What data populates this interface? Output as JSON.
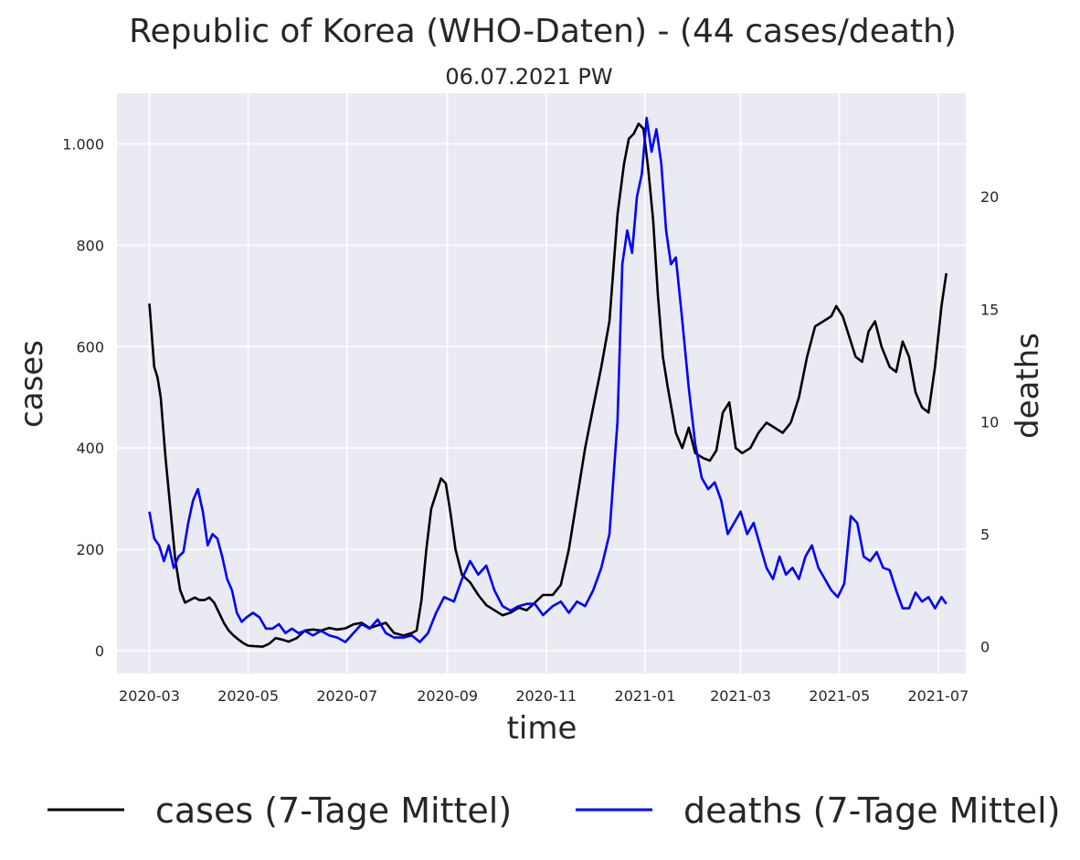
{
  "chart_data": {
    "type": "line",
    "title": "Republic of Korea (WHO-Daten) - (44 cases/death)",
    "subtitle": "06.07.2021 PW",
    "xlabel": "time",
    "ylabel_left": "cases",
    "ylabel_right": "deaths",
    "x_ticks": [
      "2020-03",
      "2020-05",
      "2020-07",
      "2020-09",
      "2020-11",
      "2021-01",
      "2021-03",
      "2021-05",
      "2021-07"
    ],
    "y_left_ticks": [
      {
        "value": 0,
        "label": "0"
      },
      {
        "value": 200,
        "label": "200"
      },
      {
        "value": 400,
        "label": "400"
      },
      {
        "value": 600,
        "label": "600"
      },
      {
        "value": 800,
        "label": "800"
      },
      {
        "value": 1000,
        "label": "1.000"
      }
    ],
    "y_right_ticks": [
      {
        "value": 0,
        "label": "0"
      },
      {
        "value": 5,
        "label": "5"
      },
      {
        "value": 10,
        "label": "10"
      },
      {
        "value": 15,
        "label": "15"
      },
      {
        "value": 20,
        "label": "20"
      }
    ],
    "x_range": [
      "2020-02-10",
      "2021-07-18"
    ],
    "y_left_range": [
      -45,
      1100
    ],
    "y_right_range": [
      -1.2,
      24.6
    ],
    "grid": true,
    "background_color": "#eaeaf2",
    "legend_position": "bottom",
    "series": [
      {
        "name": "cases (7-Tage Mittel)",
        "axis": "left",
        "color": "#000000",
        "points": [
          [
            "2020-03-01",
            685
          ],
          [
            "2020-03-04",
            560
          ],
          [
            "2020-03-06",
            540
          ],
          [
            "2020-03-08",
            500
          ],
          [
            "2020-03-11",
            380
          ],
          [
            "2020-03-14",
            280
          ],
          [
            "2020-03-17",
            180
          ],
          [
            "2020-03-20",
            120
          ],
          [
            "2020-03-23",
            95
          ],
          [
            "2020-03-26",
            100
          ],
          [
            "2020-03-29",
            105
          ],
          [
            "2020-04-01",
            100
          ],
          [
            "2020-04-04",
            100
          ],
          [
            "2020-04-07",
            105
          ],
          [
            "2020-04-10",
            95
          ],
          [
            "2020-04-13",
            75
          ],
          [
            "2020-04-16",
            55
          ],
          [
            "2020-04-19",
            40
          ],
          [
            "2020-04-22",
            30
          ],
          [
            "2020-04-25",
            22
          ],
          [
            "2020-04-28",
            15
          ],
          [
            "2020-05-01",
            10
          ],
          [
            "2020-05-05",
            9
          ],
          [
            "2020-05-10",
            8
          ],
          [
            "2020-05-14",
            14
          ],
          [
            "2020-05-18",
            25
          ],
          [
            "2020-05-22",
            22
          ],
          [
            "2020-05-26",
            18
          ],
          [
            "2020-05-31",
            25
          ],
          [
            "2020-06-05",
            40
          ],
          [
            "2020-06-10",
            42
          ],
          [
            "2020-06-15",
            40
          ],
          [
            "2020-06-20",
            45
          ],
          [
            "2020-06-25",
            42
          ],
          [
            "2020-06-30",
            44
          ],
          [
            "2020-07-05",
            52
          ],
          [
            "2020-07-10",
            55
          ],
          [
            "2020-07-15",
            45
          ],
          [
            "2020-07-20",
            50
          ],
          [
            "2020-07-25",
            55
          ],
          [
            "2020-07-30",
            35
          ],
          [
            "2020-08-05",
            30
          ],
          [
            "2020-08-10",
            35
          ],
          [
            "2020-08-13",
            40
          ],
          [
            "2020-08-16",
            100
          ],
          [
            "2020-08-19",
            200
          ],
          [
            "2020-08-22",
            280
          ],
          [
            "2020-08-25",
            310
          ],
          [
            "2020-08-28",
            340
          ],
          [
            "2020-08-31",
            330
          ],
          [
            "2020-09-03",
            270
          ],
          [
            "2020-09-06",
            200
          ],
          [
            "2020-09-10",
            150
          ],
          [
            "2020-09-15",
            135
          ],
          [
            "2020-09-20",
            110
          ],
          [
            "2020-09-25",
            90
          ],
          [
            "2020-09-30",
            80
          ],
          [
            "2020-10-05",
            70
          ],
          [
            "2020-10-10",
            75
          ],
          [
            "2020-10-15",
            85
          ],
          [
            "2020-10-20",
            80
          ],
          [
            "2020-10-25",
            95
          ],
          [
            "2020-10-30",
            110
          ],
          [
            "2020-11-05",
            110
          ],
          [
            "2020-11-10",
            130
          ],
          [
            "2020-11-15",
            200
          ],
          [
            "2020-11-20",
            300
          ],
          [
            "2020-11-25",
            400
          ],
          [
            "2020-11-30",
            480
          ],
          [
            "2020-12-05",
            560
          ],
          [
            "2020-12-10",
            650
          ],
          [
            "2020-12-15",
            860
          ],
          [
            "2020-12-19",
            960
          ],
          [
            "2020-12-22",
            1010
          ],
          [
            "2020-12-25",
            1020
          ],
          [
            "2020-12-28",
            1040
          ],
          [
            "2020-12-31",
            1030
          ],
          [
            "2021-01-03",
            950
          ],
          [
            "2021-01-06",
            850
          ],
          [
            "2021-01-09",
            700
          ],
          [
            "2021-01-12",
            580
          ],
          [
            "2021-01-15",
            520
          ],
          [
            "2021-01-20",
            430
          ],
          [
            "2021-01-24",
            400
          ],
          [
            "2021-01-28",
            440
          ],
          [
            "2021-02-01",
            390
          ],
          [
            "2021-02-06",
            380
          ],
          [
            "2021-02-10",
            375
          ],
          [
            "2021-02-14",
            395
          ],
          [
            "2021-02-18",
            470
          ],
          [
            "2021-02-22",
            490
          ],
          [
            "2021-02-26",
            400
          ],
          [
            "2021-03-02",
            390
          ],
          [
            "2021-03-07",
            400
          ],
          [
            "2021-03-12",
            430
          ],
          [
            "2021-03-17",
            450
          ],
          [
            "2021-03-22",
            440
          ],
          [
            "2021-03-27",
            430
          ],
          [
            "2021-04-01",
            450
          ],
          [
            "2021-04-06",
            500
          ],
          [
            "2021-04-11",
            580
          ],
          [
            "2021-04-16",
            640
          ],
          [
            "2021-04-21",
            650
          ],
          [
            "2021-04-26",
            660
          ],
          [
            "2021-04-29",
            680
          ],
          [
            "2021-05-03",
            660
          ],
          [
            "2021-05-07",
            620
          ],
          [
            "2021-05-11",
            580
          ],
          [
            "2021-05-15",
            570
          ],
          [
            "2021-05-19",
            630
          ],
          [
            "2021-05-23",
            650
          ],
          [
            "2021-05-27",
            600
          ],
          [
            "2021-06-01",
            560
          ],
          [
            "2021-06-05",
            550
          ],
          [
            "2021-06-09",
            610
          ],
          [
            "2021-06-13",
            580
          ],
          [
            "2021-06-17",
            510
          ],
          [
            "2021-06-21",
            480
          ],
          [
            "2021-06-25",
            470
          ],
          [
            "2021-06-29",
            560
          ],
          [
            "2021-07-03",
            680
          ],
          [
            "2021-07-06",
            745
          ]
        ]
      },
      {
        "name": "deaths (7-Tage Mittel)",
        "axis": "right",
        "color": "#0000ff",
        "points": [
          [
            "2020-03-01",
            6.0
          ],
          [
            "2020-03-04",
            4.8
          ],
          [
            "2020-03-07",
            4.5
          ],
          [
            "2020-03-10",
            3.8
          ],
          [
            "2020-03-13",
            4.5
          ],
          [
            "2020-03-16",
            3.5
          ],
          [
            "2020-03-19",
            4.0
          ],
          [
            "2020-03-22",
            4.2
          ],
          [
            "2020-03-25",
            5.5
          ],
          [
            "2020-03-28",
            6.5
          ],
          [
            "2020-03-31",
            7.0
          ],
          [
            "2020-04-03",
            6.0
          ],
          [
            "2020-04-06",
            4.5
          ],
          [
            "2020-04-09",
            5.0
          ],
          [
            "2020-04-12",
            4.8
          ],
          [
            "2020-04-15",
            4.0
          ],
          [
            "2020-04-18",
            3.0
          ],
          [
            "2020-04-21",
            2.5
          ],
          [
            "2020-04-24",
            1.5
          ],
          [
            "2020-04-27",
            1.1
          ],
          [
            "2020-04-30",
            1.3
          ],
          [
            "2020-05-04",
            1.5
          ],
          [
            "2020-05-08",
            1.3
          ],
          [
            "2020-05-12",
            0.8
          ],
          [
            "2020-05-16",
            0.8
          ],
          [
            "2020-05-20",
            1.0
          ],
          [
            "2020-05-24",
            0.6
          ],
          [
            "2020-05-28",
            0.8
          ],
          [
            "2020-06-01",
            0.6
          ],
          [
            "2020-06-05",
            0.7
          ],
          [
            "2020-06-10",
            0.5
          ],
          [
            "2020-06-15",
            0.7
          ],
          [
            "2020-06-20",
            0.5
          ],
          [
            "2020-06-25",
            0.4
          ],
          [
            "2020-06-30",
            0.2
          ],
          [
            "2020-07-05",
            0.6
          ],
          [
            "2020-07-10",
            1.0
          ],
          [
            "2020-07-15",
            0.8
          ],
          [
            "2020-07-20",
            1.2
          ],
          [
            "2020-07-25",
            0.6
          ],
          [
            "2020-07-30",
            0.4
          ],
          [
            "2020-08-05",
            0.4
          ],
          [
            "2020-08-10",
            0.5
          ],
          [
            "2020-08-15",
            0.2
          ],
          [
            "2020-08-20",
            0.6
          ],
          [
            "2020-08-25",
            1.5
          ],
          [
            "2020-08-30",
            2.2
          ],
          [
            "2020-09-05",
            2.0
          ],
          [
            "2020-09-10",
            3.0
          ],
          [
            "2020-09-15",
            3.8
          ],
          [
            "2020-09-20",
            3.2
          ],
          [
            "2020-09-25",
            3.6
          ],
          [
            "2020-09-30",
            2.5
          ],
          [
            "2020-10-05",
            1.8
          ],
          [
            "2020-10-10",
            1.6
          ],
          [
            "2020-10-15",
            1.8
          ],
          [
            "2020-10-20",
            1.9
          ],
          [
            "2020-10-25",
            1.9
          ],
          [
            "2020-10-30",
            1.4
          ],
          [
            "2020-11-05",
            1.8
          ],
          [
            "2020-11-10",
            2.0
          ],
          [
            "2020-11-15",
            1.5
          ],
          [
            "2020-11-20",
            2.0
          ],
          [
            "2020-11-25",
            1.8
          ],
          [
            "2020-11-30",
            2.5
          ],
          [
            "2020-12-05",
            3.5
          ],
          [
            "2020-12-10",
            5.0
          ],
          [
            "2020-12-15",
            10.0
          ],
          [
            "2020-12-18",
            17.0
          ],
          [
            "2020-12-21",
            18.5
          ],
          [
            "2020-12-24",
            17.5
          ],
          [
            "2020-12-27",
            20.0
          ],
          [
            "2020-12-30",
            21.0
          ],
          [
            "2021-01-02",
            23.5
          ],
          [
            "2021-01-05",
            22.0
          ],
          [
            "2021-01-08",
            23.0
          ],
          [
            "2021-01-11",
            21.5
          ],
          [
            "2021-01-14",
            18.5
          ],
          [
            "2021-01-17",
            17.0
          ],
          [
            "2021-01-20",
            17.3
          ],
          [
            "2021-01-24",
            14.5
          ],
          [
            "2021-01-28",
            11.5
          ],
          [
            "2021-02-01",
            9.0
          ],
          [
            "2021-02-05",
            7.5
          ],
          [
            "2021-02-09",
            7.0
          ],
          [
            "2021-02-13",
            7.3
          ],
          [
            "2021-02-17",
            6.5
          ],
          [
            "2021-02-21",
            5.0
          ],
          [
            "2021-02-25",
            5.5
          ],
          [
            "2021-03-01",
            6.0
          ],
          [
            "2021-03-05",
            5.0
          ],
          [
            "2021-03-09",
            5.5
          ],
          [
            "2021-03-13",
            4.5
          ],
          [
            "2021-03-17",
            3.5
          ],
          [
            "2021-03-21",
            3.0
          ],
          [
            "2021-03-25",
            4.0
          ],
          [
            "2021-03-29",
            3.2
          ],
          [
            "2021-04-02",
            3.5
          ],
          [
            "2021-04-06",
            3.0
          ],
          [
            "2021-04-10",
            4.0
          ],
          [
            "2021-04-14",
            4.5
          ],
          [
            "2021-04-18",
            3.5
          ],
          [
            "2021-04-22",
            3.0
          ],
          [
            "2021-04-26",
            2.5
          ],
          [
            "2021-04-30",
            2.2
          ],
          [
            "2021-05-04",
            2.8
          ],
          [
            "2021-05-08",
            5.8
          ],
          [
            "2021-05-12",
            5.5
          ],
          [
            "2021-05-16",
            4.0
          ],
          [
            "2021-05-20",
            3.8
          ],
          [
            "2021-05-24",
            4.2
          ],
          [
            "2021-05-28",
            3.5
          ],
          [
            "2021-06-01",
            3.4
          ],
          [
            "2021-06-05",
            2.5
          ],
          [
            "2021-06-09",
            1.7
          ],
          [
            "2021-06-13",
            1.7
          ],
          [
            "2021-06-17",
            2.4
          ],
          [
            "2021-06-21",
            2.0
          ],
          [
            "2021-06-25",
            2.2
          ],
          [
            "2021-06-29",
            1.7
          ],
          [
            "2021-07-03",
            2.2
          ],
          [
            "2021-07-06",
            1.9
          ]
        ]
      }
    ]
  }
}
